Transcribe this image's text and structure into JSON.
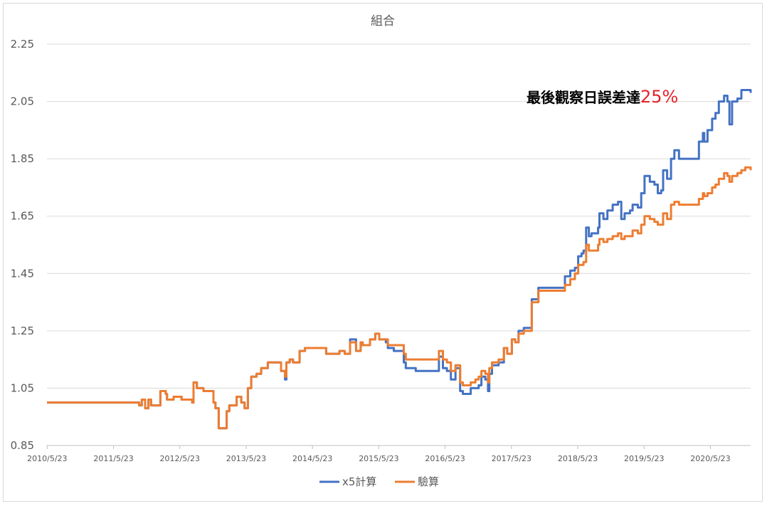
{
  "chart_data": {
    "type": "line",
    "title": "組合",
    "xlabel": "",
    "ylabel": "",
    "ylim": [
      0.85,
      2.25
    ],
    "yticks": [
      "2.25",
      "2.05",
      "1.85",
      "1.65",
      "1.45",
      "1.25",
      "1.05",
      "0.85"
    ],
    "xticks": [
      "2010/5/23",
      "2011/5/23",
      "2012/5/23",
      "2013/5/23",
      "2014/5/23",
      "2015/5/23",
      "2016/5/23",
      "2017/5/23",
      "2018/5/23",
      "2019/5/23",
      "2020/5/23"
    ],
    "xlim": [
      2010.39,
      2021.0
    ],
    "grid": true,
    "legend_position": "bottom",
    "annotation": {
      "text": "最後觀察日誤差達",
      "highlight": "25%"
    },
    "colors": {
      "x5": "#4472c4",
      "verify": "#ed7d31"
    },
    "series": [
      {
        "name": "x5計算",
        "points": [
          [
            2010.39,
            1.0
          ],
          [
            2011.7,
            1.0
          ],
          [
            2011.78,
            0.99
          ],
          [
            2011.82,
            1.01
          ],
          [
            2011.87,
            0.98
          ],
          [
            2011.92,
            1.01
          ],
          [
            2011.96,
            0.99
          ],
          [
            2012.08,
            0.99
          ],
          [
            2012.1,
            1.04
          ],
          [
            2012.18,
            1.03
          ],
          [
            2012.2,
            1.01
          ],
          [
            2012.3,
            1.02
          ],
          [
            2012.38,
            1.02
          ],
          [
            2012.42,
            1.01
          ],
          [
            2012.5,
            1.01
          ],
          [
            2012.58,
            1.0
          ],
          [
            2012.6,
            1.07
          ],
          [
            2012.65,
            1.05
          ],
          [
            2012.75,
            1.04
          ],
          [
            2012.85,
            1.04
          ],
          [
            2012.9,
            1.0
          ],
          [
            2012.93,
            0.98
          ],
          [
            2012.98,
            0.91
          ],
          [
            2013.05,
            0.91
          ],
          [
            2013.1,
            0.97
          ],
          [
            2013.14,
            0.99
          ],
          [
            2013.2,
            0.99
          ],
          [
            2013.25,
            1.02
          ],
          [
            2013.32,
            1.0
          ],
          [
            2013.37,
            0.98
          ],
          [
            2013.42,
            1.05
          ],
          [
            2013.47,
            1.09
          ],
          [
            2013.55,
            1.1
          ],
          [
            2013.62,
            1.12
          ],
          [
            2013.72,
            1.14
          ],
          [
            2013.82,
            1.14
          ],
          [
            2013.92,
            1.11
          ],
          [
            2013.98,
            1.08
          ],
          [
            2014.0,
            1.14
          ],
          [
            2014.05,
            1.15
          ],
          [
            2014.1,
            1.14
          ],
          [
            2014.18,
            1.14
          ],
          [
            2014.2,
            1.18
          ],
          [
            2014.28,
            1.19
          ],
          [
            2014.38,
            1.19
          ],
          [
            2014.48,
            1.19
          ],
          [
            2014.55,
            1.19
          ],
          [
            2014.6,
            1.17
          ],
          [
            2014.7,
            1.17
          ],
          [
            2014.8,
            1.18
          ],
          [
            2014.88,
            1.17
          ],
          [
            2014.96,
            1.22
          ],
          [
            2015.05,
            1.18
          ],
          [
            2015.12,
            1.21
          ],
          [
            2015.15,
            1.2
          ],
          [
            2015.2,
            1.2
          ],
          [
            2015.26,
            1.22
          ],
          [
            2015.34,
            1.24
          ],
          [
            2015.4,
            1.22
          ],
          [
            2015.5,
            1.21
          ],
          [
            2015.53,
            1.19
          ],
          [
            2015.62,
            1.18
          ],
          [
            2015.75,
            1.18
          ],
          [
            2015.77,
            1.14
          ],
          [
            2015.8,
            1.12
          ],
          [
            2015.95,
            1.11
          ],
          [
            2016.15,
            1.11
          ],
          [
            2016.25,
            1.11
          ],
          [
            2016.3,
            1.16
          ],
          [
            2016.36,
            1.12
          ],
          [
            2016.42,
            1.11
          ],
          [
            2016.48,
            1.08
          ],
          [
            2016.55,
            1.12
          ],
          [
            2016.62,
            1.04
          ],
          [
            2016.66,
            1.03
          ],
          [
            2016.75,
            1.03
          ],
          [
            2016.78,
            1.05
          ],
          [
            2016.85,
            1.05
          ],
          [
            2016.9,
            1.06
          ],
          [
            2016.94,
            1.09
          ],
          [
            2017.0,
            1.08
          ],
          [
            2017.04,
            1.04
          ],
          [
            2017.06,
            1.1
          ],
          [
            2017.1,
            1.13
          ],
          [
            2017.2,
            1.14
          ],
          [
            2017.28,
            1.19
          ],
          [
            2017.33,
            1.17
          ],
          [
            2017.4,
            1.22
          ],
          [
            2017.45,
            1.21
          ],
          [
            2017.5,
            1.25
          ],
          [
            2017.58,
            1.26
          ],
          [
            2017.68,
            1.26
          ],
          [
            2017.7,
            1.36
          ],
          [
            2017.75,
            1.36
          ],
          [
            2017.8,
            1.4
          ],
          [
            2017.9,
            1.4
          ],
          [
            2018.0,
            1.4
          ],
          [
            2018.05,
            1.4
          ],
          [
            2018.12,
            1.4
          ],
          [
            2018.2,
            1.44
          ],
          [
            2018.28,
            1.46
          ],
          [
            2018.35,
            1.47
          ],
          [
            2018.4,
            1.51
          ],
          [
            2018.45,
            1.52
          ],
          [
            2018.48,
            1.53
          ],
          [
            2018.52,
            1.61
          ],
          [
            2018.56,
            1.58
          ],
          [
            2018.6,
            1.59
          ],
          [
            2018.7,
            1.61
          ],
          [
            2018.72,
            1.66
          ],
          [
            2018.78,
            1.64
          ],
          [
            2018.84,
            1.67
          ],
          [
            2018.92,
            1.69
          ],
          [
            2019.0,
            1.7
          ],
          [
            2019.05,
            1.64
          ],
          [
            2019.1,
            1.66
          ],
          [
            2019.18,
            1.67
          ],
          [
            2019.22,
            1.69
          ],
          [
            2019.3,
            1.68
          ],
          [
            2019.35,
            1.73
          ],
          [
            2019.4,
            1.79
          ],
          [
            2019.48,
            1.77
          ],
          [
            2019.55,
            1.76
          ],
          [
            2019.6,
            1.73
          ],
          [
            2019.65,
            1.74
          ],
          [
            2019.68,
            1.81
          ],
          [
            2019.74,
            1.78
          ],
          [
            2019.8,
            1.85
          ],
          [
            2019.85,
            1.88
          ],
          [
            2019.92,
            1.85
          ],
          [
            2020.0,
            1.85
          ],
          [
            2020.15,
            1.85
          ],
          [
            2020.2,
            1.85
          ],
          [
            2020.22,
            1.91
          ],
          [
            2020.28,
            1.94
          ],
          [
            2020.3,
            1.91
          ],
          [
            2020.35,
            1.95
          ],
          [
            2020.42,
            1.99
          ],
          [
            2020.47,
            2.01
          ],
          [
            2020.52,
            2.05
          ],
          [
            2020.6,
            2.07
          ],
          [
            2020.65,
            2.05
          ],
          [
            2020.68,
            1.97
          ],
          [
            2020.72,
            2.05
          ],
          [
            2020.8,
            2.06
          ],
          [
            2020.86,
            2.09
          ],
          [
            2020.92,
            2.09
          ],
          [
            2021.0,
            2.08
          ]
        ]
      },
      {
        "name": "驗算",
        "points": [
          [
            2010.39,
            1.0
          ],
          [
            2011.7,
            1.0
          ],
          [
            2011.78,
            0.99
          ],
          [
            2011.82,
            1.01
          ],
          [
            2011.87,
            0.98
          ],
          [
            2011.92,
            1.01
          ],
          [
            2011.96,
            0.99
          ],
          [
            2012.08,
            0.99
          ],
          [
            2012.1,
            1.04
          ],
          [
            2012.18,
            1.03
          ],
          [
            2012.2,
            1.01
          ],
          [
            2012.3,
            1.02
          ],
          [
            2012.38,
            1.02
          ],
          [
            2012.42,
            1.01
          ],
          [
            2012.5,
            1.01
          ],
          [
            2012.58,
            1.0
          ],
          [
            2012.6,
            1.07
          ],
          [
            2012.65,
            1.05
          ],
          [
            2012.75,
            1.04
          ],
          [
            2012.85,
            1.04
          ],
          [
            2012.9,
            1.0
          ],
          [
            2012.93,
            0.98
          ],
          [
            2012.98,
            0.91
          ],
          [
            2013.05,
            0.91
          ],
          [
            2013.1,
            0.97
          ],
          [
            2013.14,
            0.99
          ],
          [
            2013.2,
            0.99
          ],
          [
            2013.25,
            1.02
          ],
          [
            2013.32,
            1.0
          ],
          [
            2013.37,
            0.98
          ],
          [
            2013.42,
            1.05
          ],
          [
            2013.47,
            1.09
          ],
          [
            2013.55,
            1.1
          ],
          [
            2013.62,
            1.12
          ],
          [
            2013.72,
            1.14
          ],
          [
            2013.82,
            1.14
          ],
          [
            2013.92,
            1.11
          ],
          [
            2013.98,
            1.09
          ],
          [
            2014.0,
            1.14
          ],
          [
            2014.05,
            1.15
          ],
          [
            2014.1,
            1.14
          ],
          [
            2014.18,
            1.14
          ],
          [
            2014.2,
            1.18
          ],
          [
            2014.28,
            1.19
          ],
          [
            2014.38,
            1.19
          ],
          [
            2014.48,
            1.19
          ],
          [
            2014.55,
            1.19
          ],
          [
            2014.6,
            1.17
          ],
          [
            2014.7,
            1.17
          ],
          [
            2014.8,
            1.18
          ],
          [
            2014.88,
            1.17
          ],
          [
            2014.96,
            1.21
          ],
          [
            2015.05,
            1.18
          ],
          [
            2015.12,
            1.21
          ],
          [
            2015.15,
            1.2
          ],
          [
            2015.2,
            1.2
          ],
          [
            2015.26,
            1.22
          ],
          [
            2015.34,
            1.24
          ],
          [
            2015.4,
            1.22
          ],
          [
            2015.5,
            1.22
          ],
          [
            2015.53,
            1.2
          ],
          [
            2015.62,
            1.2
          ],
          [
            2015.75,
            1.2
          ],
          [
            2015.77,
            1.17
          ],
          [
            2015.8,
            1.15
          ],
          [
            2015.95,
            1.15
          ],
          [
            2016.15,
            1.15
          ],
          [
            2016.25,
            1.15
          ],
          [
            2016.3,
            1.18
          ],
          [
            2016.36,
            1.15
          ],
          [
            2016.42,
            1.14
          ],
          [
            2016.48,
            1.11
          ],
          [
            2016.55,
            1.13
          ],
          [
            2016.62,
            1.07
          ],
          [
            2016.66,
            1.06
          ],
          [
            2016.75,
            1.06
          ],
          [
            2016.78,
            1.07
          ],
          [
            2016.85,
            1.08
          ],
          [
            2016.9,
            1.09
          ],
          [
            2016.94,
            1.11
          ],
          [
            2017.0,
            1.1
          ],
          [
            2017.04,
            1.07
          ],
          [
            2017.06,
            1.12
          ],
          [
            2017.1,
            1.14
          ],
          [
            2017.2,
            1.15
          ],
          [
            2017.28,
            1.19
          ],
          [
            2017.33,
            1.17
          ],
          [
            2017.4,
            1.22
          ],
          [
            2017.45,
            1.21
          ],
          [
            2017.5,
            1.24
          ],
          [
            2017.58,
            1.25
          ],
          [
            2017.68,
            1.25
          ],
          [
            2017.7,
            1.35
          ],
          [
            2017.75,
            1.35
          ],
          [
            2017.8,
            1.39
          ],
          [
            2017.9,
            1.39
          ],
          [
            2018.0,
            1.39
          ],
          [
            2018.05,
            1.39
          ],
          [
            2018.12,
            1.39
          ],
          [
            2018.2,
            1.41
          ],
          [
            2018.28,
            1.43
          ],
          [
            2018.35,
            1.45
          ],
          [
            2018.4,
            1.48
          ],
          [
            2018.45,
            1.48
          ],
          [
            2018.48,
            1.49
          ],
          [
            2018.52,
            1.55
          ],
          [
            2018.56,
            1.53
          ],
          [
            2018.6,
            1.53
          ],
          [
            2018.7,
            1.55
          ],
          [
            2018.72,
            1.57
          ],
          [
            2018.78,
            1.56
          ],
          [
            2018.84,
            1.57
          ],
          [
            2018.92,
            1.58
          ],
          [
            2019.0,
            1.59
          ],
          [
            2019.05,
            1.57
          ],
          [
            2019.1,
            1.58
          ],
          [
            2019.18,
            1.58
          ],
          [
            2019.22,
            1.6
          ],
          [
            2019.3,
            1.59
          ],
          [
            2019.35,
            1.62
          ],
          [
            2019.4,
            1.65
          ],
          [
            2019.48,
            1.64
          ],
          [
            2019.55,
            1.63
          ],
          [
            2019.6,
            1.62
          ],
          [
            2019.65,
            1.62
          ],
          [
            2019.68,
            1.66
          ],
          [
            2019.74,
            1.64
          ],
          [
            2019.8,
            1.69
          ],
          [
            2019.85,
            1.7
          ],
          [
            2019.92,
            1.69
          ],
          [
            2020.0,
            1.69
          ],
          [
            2020.15,
            1.69
          ],
          [
            2020.2,
            1.69
          ],
          [
            2020.22,
            1.71
          ],
          [
            2020.28,
            1.73
          ],
          [
            2020.3,
            1.72
          ],
          [
            2020.35,
            1.73
          ],
          [
            2020.42,
            1.75
          ],
          [
            2020.47,
            1.76
          ],
          [
            2020.52,
            1.78
          ],
          [
            2020.6,
            1.8
          ],
          [
            2020.65,
            1.79
          ],
          [
            2020.68,
            1.77
          ],
          [
            2020.72,
            1.79
          ],
          [
            2020.8,
            1.8
          ],
          [
            2020.86,
            1.81
          ],
          [
            2020.92,
            1.82
          ],
          [
            2021.0,
            1.81
          ]
        ]
      }
    ]
  }
}
